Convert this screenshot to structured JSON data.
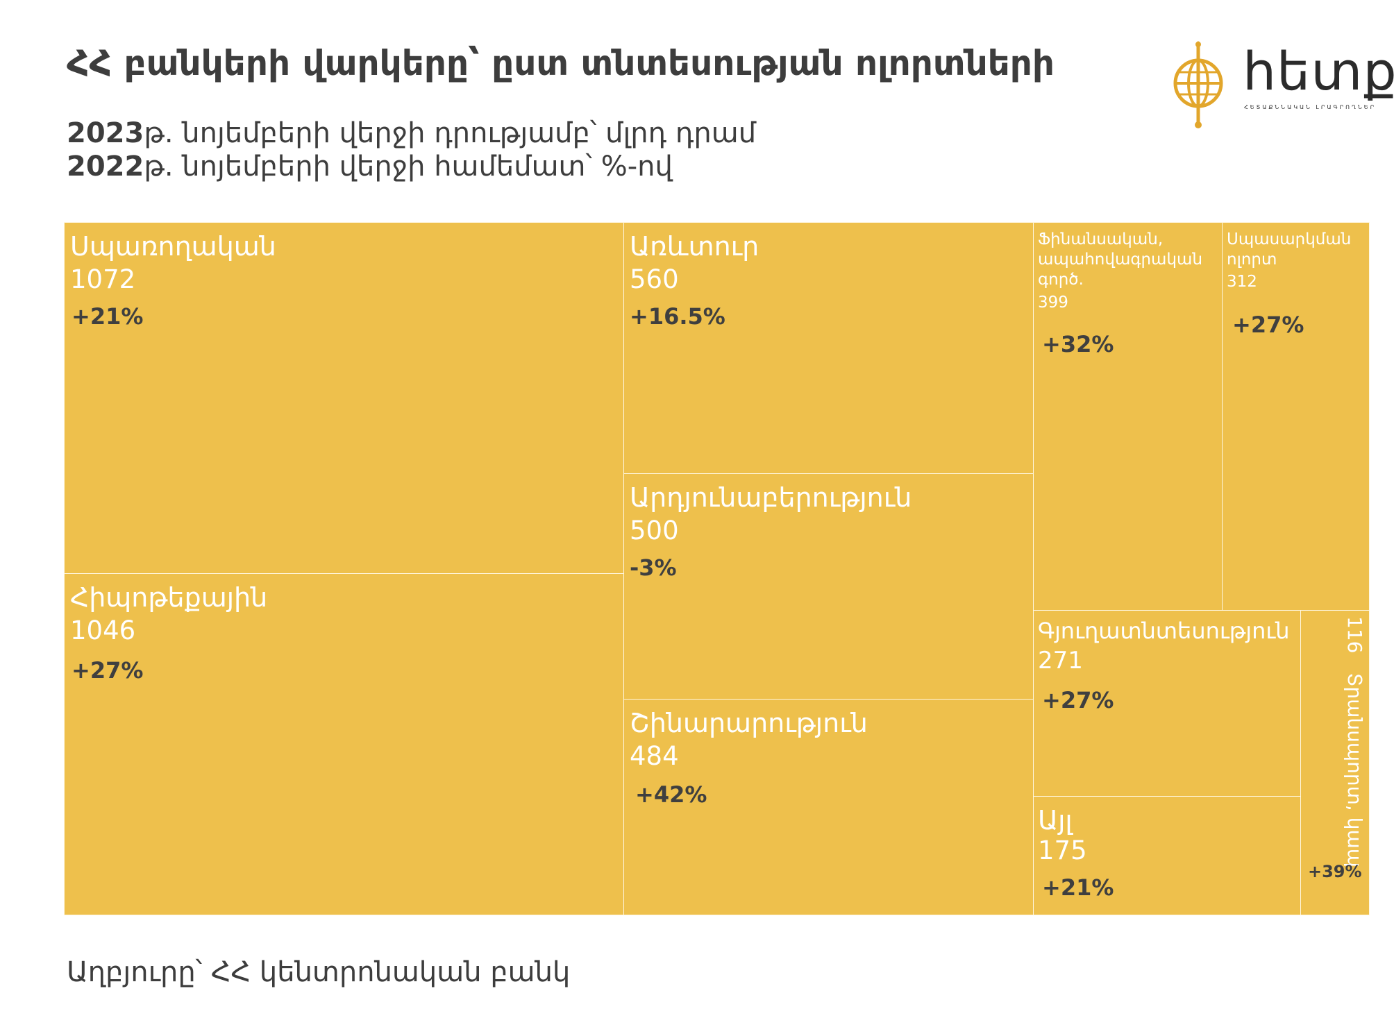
{
  "title": "ՀՀ բանկերի վարկերը՝ ըստ տնտեսության ոլորտների",
  "subtitle": {
    "line1_year": "2023",
    "line1_rest": "թ. նոյեմբերի վերջի դրությամբ՝ մլրդ դրամ",
    "line2_year": "2022",
    "line2_rest": "թ. նոյեմբերի վերջի համեմատ՝ %-ով"
  },
  "logo": {
    "name": "hետք",
    "tagline": "ՀԵՏԱՔՆՆԱԿԱՆ ԼՐԱԳՐՈՂՆԵՐ",
    "color": "#e2a62b"
  },
  "source": "Աղբյուրը՝ ՀՀ կենտրոնական բանկ",
  "colors": {
    "tile": "#eec04c",
    "label": "#ffffff",
    "pct": "#3f3f3f"
  },
  "chart_data": {
    "type": "treemap",
    "title": "ՀՀ բանկերի վարկերը՝ ըստ տնտեսության ոլորտների",
    "unit": "մլրդ դրամ",
    "items": [
      {
        "name": "Սպառողական",
        "value": 1072,
        "change": "+21%"
      },
      {
        "name": "Հիպոթեքային",
        "value": 1046,
        "change": "+27%"
      },
      {
        "name": "Առևտուր",
        "value": 560,
        "change": "+16.5%"
      },
      {
        "name": "Արդյունաբերություն",
        "value": 500,
        "change": "-3%"
      },
      {
        "name": "Շինարարություն",
        "value": 484,
        "change": "+42%"
      },
      {
        "name": "Ֆինանսական, ապահովագրական գործ.",
        "value": 399,
        "change": "+32%"
      },
      {
        "name": "Սպասարկման ոլորտ",
        "value": 312,
        "change": "+27%"
      },
      {
        "name": "Գյուղատնտեսություն",
        "value": 271,
        "change": "+27%"
      },
      {
        "name": "Այլ",
        "value": 175,
        "change": "+21%"
      },
      {
        "name": "Տրանսպորտ, կապ",
        "value": 116,
        "change": "+39%"
      }
    ]
  }
}
